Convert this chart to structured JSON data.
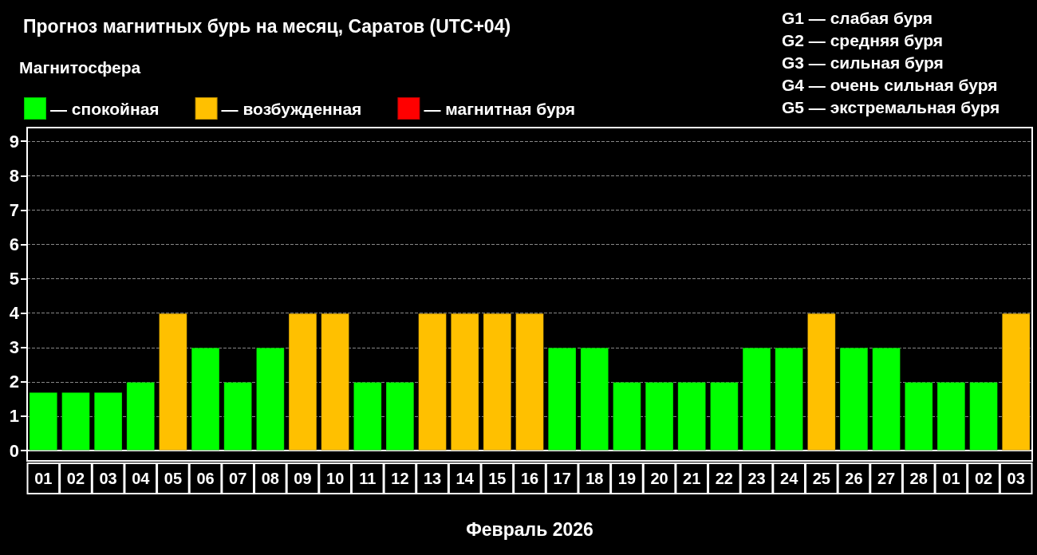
{
  "chart_data": {
    "type": "bar",
    "title": "Прогноз магнитных бурь на месяц, Саратов (UTC+04)",
    "legend_title": "Магнитосфера",
    "xlabel": "Февраль 2026",
    "annotations": [
      "G1 — слабая буря",
      "G2 — средняя буря",
      "G3 — сильная буря",
      "G4 — очень сильная буря",
      "G5 — экстремальная буря"
    ],
    "categories": [
      "01",
      "02",
      "03",
      "04",
      "05",
      "06",
      "07",
      "08",
      "09",
      "10",
      "11",
      "12",
      "13",
      "14",
      "15",
      "16",
      "17",
      "18",
      "19",
      "20",
      "21",
      "22",
      "23",
      "24",
      "25",
      "26",
      "27",
      "28",
      "01",
      "02",
      "03"
    ],
    "stacked": true,
    "series": [
      {
        "name": "— спокойная",
        "color": "#00ff00",
        "values": [
          1.7,
          1.7,
          1.7,
          2,
          null,
          3,
          2,
          3,
          null,
          null,
          2,
          2,
          null,
          null,
          null,
          null,
          3,
          3,
          2,
          2,
          2,
          2,
          3,
          3,
          null,
          3,
          3,
          2,
          2,
          2,
          null
        ]
      },
      {
        "name": "— возбужденная",
        "color": "#ffc000",
        "values": [
          null,
          null,
          null,
          null,
          4,
          null,
          null,
          null,
          4,
          4,
          null,
          null,
          4,
          4,
          4,
          4,
          null,
          null,
          null,
          null,
          null,
          null,
          null,
          null,
          4,
          null,
          null,
          null,
          null,
          null,
          4
        ]
      },
      {
        "name": "— магнитная буря",
        "color": "#ff0000",
        "values": [
          null,
          null,
          null,
          null,
          null,
          null,
          null,
          null,
          null,
          null,
          null,
          null,
          null,
          null,
          null,
          null,
          null,
          null,
          null,
          null,
          null,
          null,
          null,
          null,
          null,
          null,
          null,
          null,
          null,
          null,
          null
        ]
      }
    ],
    "ylim": [
      -0.3,
      9.4
    ],
    "yticks": [
      0,
      1,
      2,
      3,
      4,
      5,
      6,
      7,
      8,
      9
    ],
    "grid": "y",
    "legend": "top left"
  }
}
